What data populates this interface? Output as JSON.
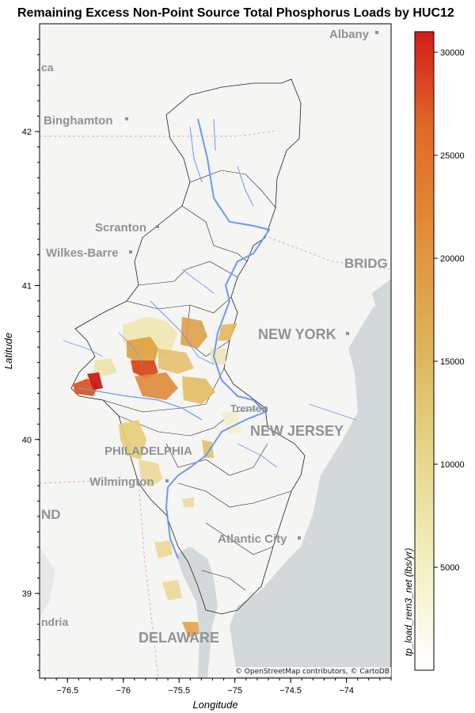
{
  "title": "Remaining Excess Non-Point Source Total Phosphorus Loads by HUC12",
  "attribution": "© OpenStreetMap contributors, © CartoDB",
  "colors": {
    "water": "#d3d8db",
    "land": "#f5f5f4",
    "river": "#6b9af0",
    "outline": "#222222",
    "colorbar_low": "#ffffff",
    "colorbar_mid": "#e1c860",
    "colorbar_high": "#d42020"
  },
  "map_labels": [
    {
      "text": "Albany"
    },
    {
      "text": "Binghamton"
    },
    {
      "text": "Scranton"
    },
    {
      "text": "Wilkes-Barre"
    },
    {
      "text": "BRIDG"
    },
    {
      "text": "NEW YORK"
    },
    {
      "text": "Trenton"
    },
    {
      "text": "NEW JERSEY"
    },
    {
      "text": "PHILADELPHIA"
    },
    {
      "text": "Wilmington"
    },
    {
      "text": "Atlantic City"
    },
    {
      "text": "DELAWARE"
    },
    {
      "text": "ca"
    },
    {
      "text": "ND"
    },
    {
      "text": "ndria"
    }
  ],
  "chart_data": {
    "type": "heatmap",
    "map_type": "choropleth",
    "title": "Remaining Excess Non-Point Source Total Phosphorus Loads by HUC12",
    "xlabel": "Longitude",
    "ylabel": "Latitude",
    "colorbar_label": "tp_load_rem3_net (lbs/yr)",
    "xlim": [
      -76.75,
      -73.6
    ],
    "ylim": [
      38.45,
      42.7
    ],
    "x_ticks": [
      -76.5,
      -76,
      -75.5,
      -75,
      -74.5,
      -74
    ],
    "x_tick_labels": [
      "−76.5",
      "−76",
      "−75.5",
      "−75",
      "−74.5",
      "−74"
    ],
    "y_ticks": [
      39,
      40,
      41,
      42
    ],
    "y_tick_labels": [
      "39",
      "40",
      "41",
      "42"
    ],
    "colorbar_range": [
      0,
      31000
    ],
    "colorbar_ticks": [
      5000,
      10000,
      15000,
      20000,
      25000,
      30000
    ],
    "colorbar_tick_labels": [
      "5000",
      "10000",
      "15000",
      "20000",
      "25000",
      "30000"
    ],
    "grid": false
  }
}
